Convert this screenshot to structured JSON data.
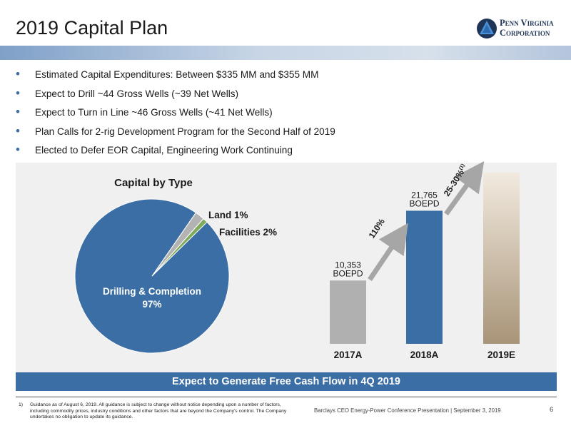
{
  "slide": {
    "title": "2019 Capital Plan",
    "logo": {
      "line1": "Penn Virginia",
      "line2": "Corporation"
    },
    "bullets": [
      "Estimated Capital Expenditures: Between $335 MM and $355 MM",
      "Expect to Drill ~44 Gross Wells (~39 Net Wells)",
      "Expect to Turn in Line ~46 Gross Wells (~41 Net Wells)",
      "Plan Calls for 2-rig Development Program for the Second Half of 2019",
      "Elected to Defer EOR Capital, Engineering Work Continuing"
    ],
    "banner": "Expect to Generate Free Cash Flow in 4Q 2019",
    "footnote_number": "1)",
    "footnote": "Guidance as of August 6, 2019.  All guidance is subject to change without notice depending upon a number of factors, including commodity prices, industry conditions and other factors that are beyond the Company's control.  The Company undertakes no obligation to update its guidance.",
    "source": "Barclays CEO Energy-Power Conference Presentation | September 3, 2019",
    "page_number": "6"
  },
  "chart_data": [
    {
      "type": "pie",
      "title": "Capital by Type",
      "slices": [
        {
          "label": "Drilling & Completion",
          "display": "97%",
          "value": 97,
          "color": "#3b6ea5"
        },
        {
          "label": "Facilities",
          "display": "2%",
          "value": 2,
          "color": "#b3b3b3"
        },
        {
          "label": "Land",
          "display": "1%",
          "value": 1,
          "color": "#7eaa5a"
        }
      ]
    },
    {
      "type": "bar",
      "categories": [
        "2017A",
        "2018A",
        "2019E"
      ],
      "values": [
        10353,
        21765,
        null
      ],
      "data_labels": [
        "10,353\nBOEPD",
        "21,765\nBOEPD",
        ""
      ],
      "colors": [
        "#b0b0b0",
        "#3b6ea5",
        "#a89478"
      ],
      "growth_labels": [
        "110%",
        "25-30%(1)"
      ],
      "ylim": [
        0,
        28000
      ],
      "notes": "2019E bar shown as a gradient with no printed value"
    }
  ]
}
